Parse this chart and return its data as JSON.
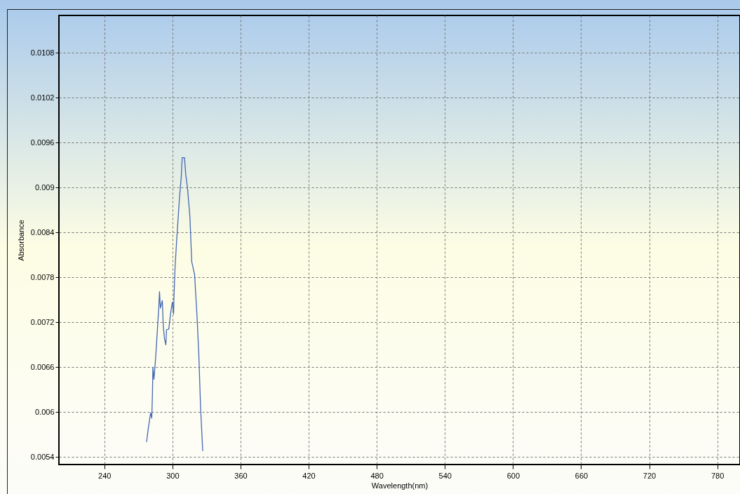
{
  "chart_data": {
    "type": "line",
    "xlabel": "Wavelength(nm)",
    "ylabel": "Absorbance",
    "x": [
      277.2,
      278.7,
      280.8,
      281.8,
      282.4,
      282.8,
      283.7,
      285.1,
      285.9,
      287.0,
      288.0,
      288.6,
      289.4,
      291.1,
      291.9,
      293.0,
      294.2,
      294.8,
      296.8,
      298.3,
      299.9,
      301.0,
      301.4,
      302.3,
      303.5,
      305.1,
      306.1,
      307.8,
      308.6,
      310.6,
      311.7,
      313.3,
      315.4,
      317.0,
      319.5,
      321.6,
      323.2,
      324.8,
      326.7
    ],
    "series": [
      {
        "color": "#4468b4",
        "values": [
          0.0056,
          0.00578,
          0.00599,
          0.00592,
          0.00625,
          0.0066,
          0.00644,
          0.0067,
          0.00689,
          0.00716,
          0.0074,
          0.00761,
          0.00739,
          0.00749,
          0.00716,
          0.00698,
          0.0069,
          0.0071,
          0.00711,
          0.00731,
          0.00747,
          0.00731,
          0.00756,
          0.00793,
          0.00824,
          0.00861,
          0.00884,
          0.00915,
          0.0094,
          0.0094,
          0.00918,
          0.00899,
          0.00861,
          0.00801,
          0.00784,
          0.0073,
          0.00679,
          0.00606,
          0.00548
        ]
      }
    ],
    "xlim": [
      200,
      800
    ],
    "xticks": [
      240,
      300,
      360,
      420,
      480,
      540,
      600,
      660,
      720,
      780
    ],
    "ylim": [
      0.0053,
      0.0113
    ],
    "yticks": [
      0.0054,
      0.006,
      0.0066,
      0.0072,
      0.0078,
      0.0084,
      0.009,
      0.0096,
      0.0102,
      0.0108
    ],
    "grid": true,
    "line_style": "solid"
  }
}
